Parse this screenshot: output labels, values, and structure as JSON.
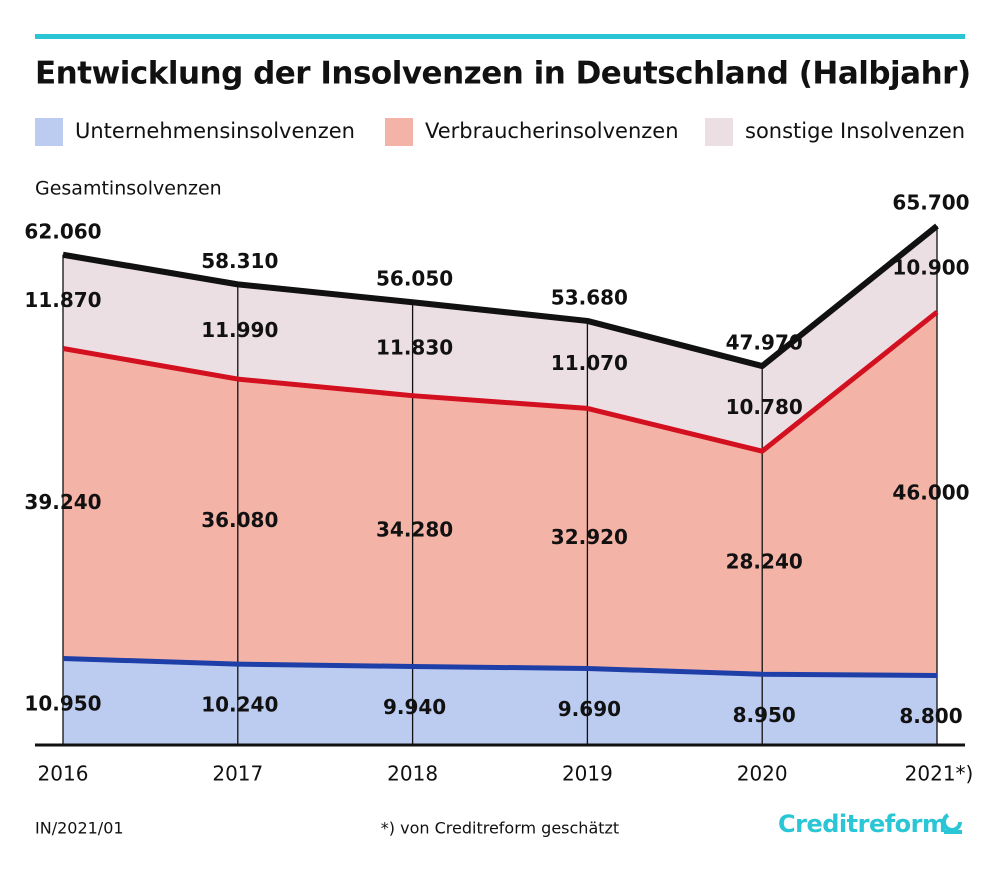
{
  "title": "Entwicklung der Insolvenzen in Deutschland (Halbjahr)",
  "chart_data": {
    "type": "stacked-area",
    "categories": [
      "2016",
      "2017",
      "2018",
      "2019",
      "2020",
      "2021*)"
    ],
    "series": [
      {
        "name": "Unternehmensinsolvenzen",
        "color": "#bccbf0",
        "line_color": "#1e3ea8",
        "values": [
          10950,
          10240,
          9940,
          9690,
          8950,
          8800
        ],
        "value_labels": [
          "10.950",
          "10.240",
          "9.940",
          "9.690",
          "8.950",
          "8.800"
        ]
      },
      {
        "name": "Verbraucherinsolvenzen",
        "color": "#f4b3a7",
        "line_color": "#d3101f",
        "values": [
          39240,
          36080,
          34280,
          32920,
          28240,
          46000
        ],
        "value_labels": [
          "39.240",
          "36.080",
          "34.280",
          "32.920",
          "28.240",
          "46.000"
        ]
      },
      {
        "name": "sonstige Insolvenzen",
        "color": "#ecdfe3",
        "values": [
          11870,
          11990,
          11830,
          11070,
          10780,
          10900
        ],
        "value_labels": [
          "11.870",
          "11.990",
          "11.830",
          "11.070",
          "10.780",
          "10.900"
        ]
      }
    ],
    "total": {
      "name": "Gesamtinsolvenzen",
      "color": "#111111",
      "values": [
        62060,
        58310,
        56050,
        53680,
        47970,
        65700
      ],
      "value_labels": [
        "62.060",
        "58.310",
        "56.050",
        "53.680",
        "47.970",
        "65.700"
      ]
    }
  },
  "footer": {
    "code": "IN/2021/01",
    "note": "*) von Creditreform geschätzt",
    "logo": "Creditreform"
  }
}
